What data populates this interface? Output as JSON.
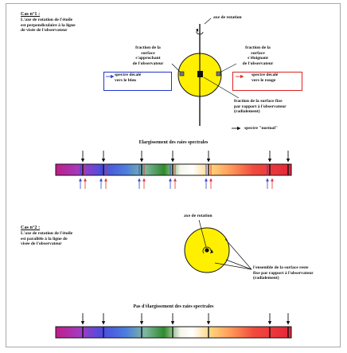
{
  "case1": {
    "title": "Cas n°1 :",
    "description": "L'axe de rotation de l'étoile\nest perpendiculaire à la ligne\nde visée de l'observateur",
    "axis_label": "axe de rotation",
    "left_label": "fraction de la\nsurface\ns'approchant\nde l'observateur",
    "right_label": "fraction de la\nsurface\ns'éloignant\nde l'observateur",
    "blue_spectrum_label": "spectre décalé\nvers le bleu",
    "red_spectrum_label": "spectre décalé\nvers le rouge",
    "fixed_label": "fraction de la surface fixe\npar rapport à l'observateur\n(radialement)",
    "normal_label": "spectre \"normal\"",
    "spectrum_title": "Elargissement des raies spectrales"
  },
  "case2": {
    "title": "Cas n°2 :",
    "description": "L'axe de rotation de l'étoile\nest parallèle à la ligne de\nvisée de l'observateur",
    "axis_label": "axe de rotation",
    "surface_label": "l'ensemble de la surface reste\nfixe par rapport à l'observateur\n(radialement)",
    "spectrum_title": "Pas d'élargissement des raies spectrales"
  },
  "colors": {
    "star": "#fff000",
    "blue_arrow": "#3344cc",
    "red_arrow": "#dd3333",
    "frame": "#a8a8a8"
  }
}
